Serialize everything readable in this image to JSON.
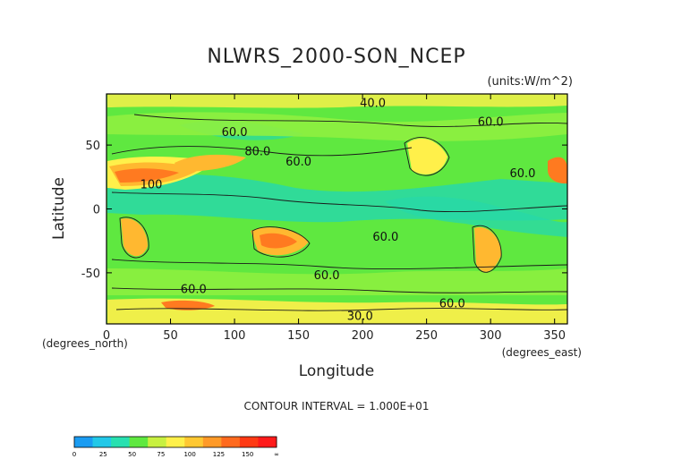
{
  "chart_data": {
    "type": "heatmap",
    "title": "NLWRS_2000-SON_NCEP",
    "units": "(units:W/m^2)",
    "xlabel": "Longitude",
    "ylabel": "Latitude",
    "x_unit_label": "(degrees_east)",
    "y_unit_label": "(degrees_north)",
    "xlim": [
      0,
      360
    ],
    "ylim": [
      -90,
      90
    ],
    "x_ticks": [
      0,
      50,
      100,
      150,
      200,
      250,
      300,
      350
    ],
    "y_ticks": [
      -50,
      0,
      50
    ],
    "contour_interval_text": "CONTOUR INTERVAL = 1.000E+01",
    "contour_labels": [
      {
        "text": "40.0",
        "lon": 208,
        "lat": 80
      },
      {
        "text": "60.0",
        "lon": 100,
        "lat": 57
      },
      {
        "text": "80.0",
        "lon": 118,
        "lat": 42
      },
      {
        "text": "60.0",
        "lon": 150,
        "lat": 34
      },
      {
        "text": "60.0",
        "lon": 300,
        "lat": 65
      },
      {
        "text": "60.0",
        "lon": 325,
        "lat": 25
      },
      {
        "text": "100",
        "lon": 35,
        "lat": 16
      },
      {
        "text": "60.0",
        "lon": 218,
        "lat": -25
      },
      {
        "text": "60.0",
        "lon": 172,
        "lat": -55
      },
      {
        "text": "60.0",
        "lon": 68,
        "lat": -66
      },
      {
        "text": "60.0",
        "lon": 270,
        "lat": -77
      },
      {
        "text": "30.0",
        "lon": 198,
        "lat": -87
      }
    ],
    "colorbar": {
      "ticks": [
        "0",
        "25",
        "50",
        "75",
        "100",
        "125",
        "150",
        "∞"
      ],
      "colors": [
        "#1a9cf2",
        "#22c8e8",
        "#28e0b0",
        "#5fe840",
        "#c8f040",
        "#fff04a",
        "#ffc832",
        "#ff9a28",
        "#ff6a1e",
        "#ff3a14",
        "#ff1a1a"
      ]
    },
    "level_colors": {
      "below_40": "#28d8a8",
      "40_to_60": "#5fe840",
      "60_to_80": "#8ff040",
      "80_to_100": "#fff04a",
      "100_to_125": "#ffb830",
      "125_to_150": "#ff7a20",
      "above_150": "#e8401a"
    }
  }
}
